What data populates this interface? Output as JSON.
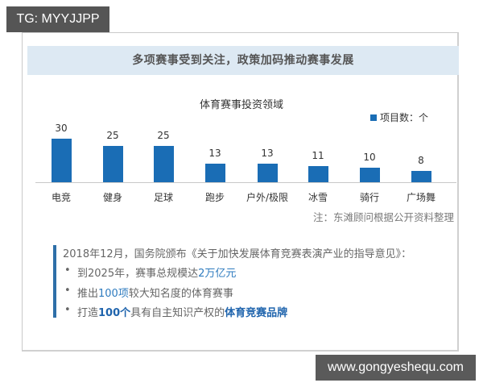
{
  "watermarks": {
    "top_left": "TG: MYYJJPP",
    "bottom_right": "www.gongyeshequ.com"
  },
  "header": {
    "title": "多项赛事受到关注，政策加码推动赛事发展"
  },
  "chart": {
    "title": "体育赛事投资领域",
    "legend": "项目数：个",
    "note": "注：东滩顾问根据公开资料整理",
    "bar_color": "#1a6db5"
  },
  "chart_data": {
    "type": "bar",
    "title": "体育赛事投资领域",
    "categories": [
      "电竞",
      "健身",
      "足球",
      "跑步",
      "户外/极限",
      "冰雪",
      "骑行",
      "广场舞"
    ],
    "series": [
      {
        "name": "项目数：个",
        "values": [
          30,
          25,
          25,
          13,
          13,
          11,
          10,
          8
        ]
      }
    ],
    "values": [
      30,
      25,
      25,
      13,
      13,
      11,
      10,
      8
    ],
    "xlabel": "",
    "ylabel": "",
    "ylim": [
      0,
      30
    ],
    "grid": false,
    "legend_position": "top-right",
    "data_labels": true,
    "annotations": [
      "注：东滩顾问根据公开资料整理"
    ]
  },
  "policy": {
    "intro": "2018年12月，国务院颁布《关于加快发展体育竞赛表演产业的指导意见》：",
    "bullets": [
      {
        "pre": "到2025年，赛事总规模达",
        "hl": "2万亿元",
        "post": ""
      },
      {
        "pre": "推出",
        "hl": "100项",
        "post": "较大知名度的体育赛事"
      },
      {
        "pre": "打造",
        "hl": "100个",
        "mid": "具有自主知识产权的",
        "hl2": "体育竞赛品牌"
      }
    ],
    "bullet_symbol": "•"
  }
}
